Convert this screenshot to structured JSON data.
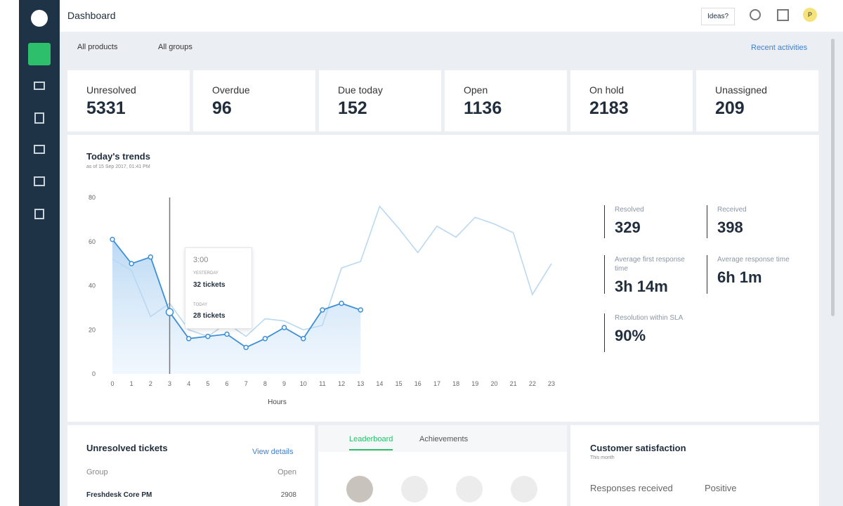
{
  "header": {
    "title": "Dashboard",
    "ideas": "Ideas?",
    "avatar": "P"
  },
  "filters": {
    "products": "All products",
    "groups": "All groups",
    "recent": "Recent activities"
  },
  "stats": [
    {
      "label": "Unresolved",
      "value": 5331
    },
    {
      "label": "Overdue",
      "value": 96
    },
    {
      "label": "Due today",
      "value": 152
    },
    {
      "label": "Open",
      "value": 1136
    },
    {
      "label": "On hold",
      "value": 2183
    },
    {
      "label": "Unassigned",
      "value": 209
    }
  ],
  "trends": {
    "type": "line",
    "title": "Today's trends",
    "subtitle": "as of 15 Sep 2017, 01:41 PM",
    "xlabel": "Hours",
    "x": [
      0,
      1,
      2,
      3,
      4,
      5,
      6,
      7,
      8,
      9,
      10,
      11,
      12,
      13,
      14,
      15,
      16,
      17,
      18,
      19,
      20,
      21,
      22,
      23
    ],
    "xlim": [
      0,
      23
    ],
    "ylim": [
      0,
      80
    ],
    "yticks": [
      0,
      20,
      40,
      60,
      80
    ],
    "series": [
      {
        "color": "#b9d8f2",
        "values": [
          52,
          47,
          26,
          32,
          20,
          17,
          23,
          17,
          25,
          24,
          20,
          22,
          48,
          51,
          76,
          66,
          55,
          67,
          62,
          71,
          68,
          64,
          36,
          50
        ]
      },
      {
        "color": "#3d8fd6",
        "values": [
          61,
          50,
          53,
          28,
          16,
          17,
          18,
          12,
          16,
          21,
          16,
          29,
          32,
          29,
          null,
          null,
          null,
          null,
          null,
          null,
          null,
          null,
          null,
          null
        ]
      }
    ],
    "tooltip": {
      "time": "3:00",
      "yesterday_label": "YESTERDAY",
      "yesterday": "32 tickets",
      "today_label": "TODAY",
      "today": "28 tickets"
    }
  },
  "metrics": [
    {
      "label": "Resolved",
      "value": "329"
    },
    {
      "label": "Received",
      "value": "398"
    },
    {
      "label": "Average first response time",
      "value": "3h 14m"
    },
    {
      "label": "Average response time",
      "value": "6h 1m"
    },
    {
      "label": "Resolution within SLA",
      "value": "90%"
    }
  ],
  "unresolved": {
    "title": "Unresolved tickets",
    "link": "View details",
    "columns": [
      "Group",
      "Open"
    ],
    "rows": [
      [
        "Freshdesk Core PM",
        "2908"
      ]
    ]
  },
  "leaderboard": {
    "tabs": [
      "Leaderboard",
      "Achievements"
    ]
  },
  "satisfaction": {
    "title": "Customer satisfaction",
    "subtitle": "This month",
    "columns": [
      "Responses received",
      "Positive"
    ]
  }
}
